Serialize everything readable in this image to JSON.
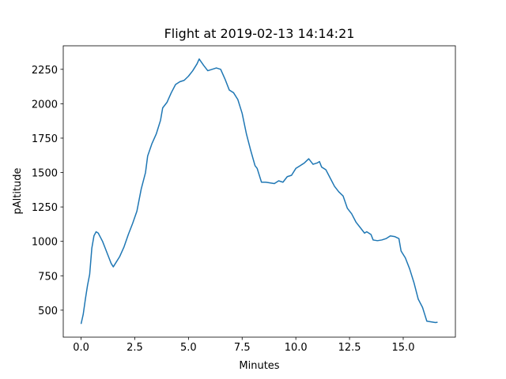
{
  "chart_data": {
    "type": "line",
    "title": "Flight at 2019-02-13 14:14:21",
    "x_label": "Minutes",
    "y_label": "pAltitude",
    "color": "#1f77b4",
    "x": [
      0,
      0.1,
      0.2,
      0.3,
      0.4,
      0.5,
      0.6,
      0.7,
      0.8,
      0.9,
      1.0,
      1.1,
      1.2,
      1.3,
      1.4,
      1.5,
      1.6,
      1.8,
      2.0,
      2.2,
      2.4,
      2.6,
      2.8,
      3.0,
      3.1,
      3.3,
      3.5,
      3.7,
      3.8,
      4.0,
      4.2,
      4.4,
      4.6,
      4.8,
      5.0,
      5.2,
      5.4,
      5.5,
      5.7,
      5.9,
      6.1,
      6.3,
      6.5,
      6.7,
      6.9,
      7.1,
      7.3,
      7.5,
      7.7,
      7.9,
      8.1,
      8.2,
      8.4,
      8.6,
      8.8,
      9.0,
      9.2,
      9.4,
      9.6,
      9.8,
      10.0,
      10.2,
      10.4,
      10.6,
      10.8,
      11.0,
      11.1,
      11.2,
      11.4,
      11.6,
      11.8,
      12.0,
      12.2,
      12.4,
      12.6,
      12.8,
      13.0,
      13.2,
      13.3,
      13.5,
      13.6,
      13.8,
      14.0,
      14.2,
      14.4,
      14.6,
      14.8,
      14.9,
      15.1,
      15.3,
      15.5,
      15.7,
      15.9,
      16.0,
      16.1,
      16.3,
      16.5,
      16.6
    ],
    "values": [
      400,
      470,
      580,
      680,
      760,
      950,
      1040,
      1070,
      1060,
      1030,
      1000,
      960,
      920,
      880,
      840,
      815,
      840,
      890,
      960,
      1050,
      1130,
      1220,
      1380,
      1500,
      1620,
      1710,
      1780,
      1880,
      1970,
      2010,
      2080,
      2140,
      2160,
      2170,
      2200,
      2240,
      2290,
      2325,
      2280,
      2240,
      2250,
      2260,
      2250,
      2180,
      2100,
      2080,
      2030,
      1930,
      1780,
      1660,
      1550,
      1530,
      1430,
      1430,
      1425,
      1420,
      1440,
      1430,
      1470,
      1480,
      1530,
      1550,
      1570,
      1600,
      1560,
      1570,
      1580,
      1540,
      1520,
      1460,
      1400,
      1360,
      1330,
      1240,
      1200,
      1140,
      1100,
      1060,
      1070,
      1050,
      1010,
      1005,
      1010,
      1020,
      1040,
      1035,
      1020,
      930,
      880,
      800,
      700,
      580,
      520,
      470,
      420,
      415,
      410,
      412
    ],
    "xlim": [
      -0.83,
      17.43
    ],
    "xticks": [
      {
        "value": 0,
        "label": "0.0"
      },
      2.5,
      {
        "value": 5,
        "label": "5.0"
      },
      7.5,
      {
        "value": 10,
        "label": "10.0"
      },
      12.5,
      {
        "value": 15,
        "label": "15.0"
      }
    ],
    "ylim": [
      304,
      2421
    ],
    "yticks": [
      500,
      750,
      1000,
      1250,
      1500,
      1750,
      2000,
      2250
    ]
  }
}
